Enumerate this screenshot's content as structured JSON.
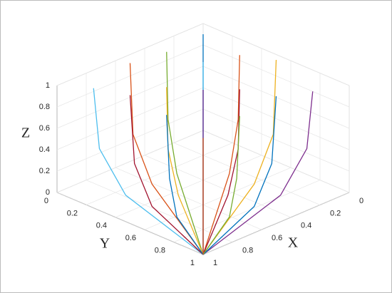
{
  "chart_data": {
    "type": "line3d",
    "x_label": "X",
    "y_label": "Y",
    "z_label": "Z",
    "xlim": [
      0,
      1
    ],
    "ylim": [
      0,
      1
    ],
    "zlim": [
      0,
      1
    ],
    "xticks": [
      0,
      0.2,
      0.4,
      0.6,
      0.8,
      1
    ],
    "yticks": [
      0,
      0.2,
      0.4,
      0.6,
      0.8,
      1
    ],
    "zticks": [
      0,
      0.2,
      0.4,
      0.6,
      0.8,
      1
    ],
    "grid": true,
    "series": [
      {
        "color": "#0072BD",
        "x": [
          0,
          0.05,
          0.3,
          1
        ],
        "y": [
          0,
          0.05,
          0.3,
          1
        ],
        "z": [
          0.9,
          0.3,
          0.05,
          0
        ]
      },
      {
        "color": "#D95319",
        "x": [
          0,
          0.05,
          0.3,
          1
        ],
        "y": [
          0.25,
          0.29,
          0.48,
          1
        ],
        "z": [
          0.85,
          0.3,
          0.05,
          0
        ]
      },
      {
        "color": "#EDB120",
        "x": [
          0,
          0.05,
          0.3,
          1
        ],
        "y": [
          0.5,
          0.53,
          0.65,
          1
        ],
        "z": [
          0.95,
          0.3,
          0.05,
          0
        ]
      },
      {
        "color": "#7E2F8E",
        "x": [
          0,
          0.05,
          0.3,
          1
        ],
        "y": [
          0.75,
          0.76,
          0.83,
          1
        ],
        "z": [
          0.8,
          0.3,
          0.05,
          0
        ]
      },
      {
        "color": "#77AC30",
        "x": [
          0.25,
          0.29,
          0.48,
          1
        ],
        "y": [
          0,
          0.05,
          0.3,
          1
        ],
        "z": [
          0.88,
          0.3,
          0.05,
          0
        ]
      },
      {
        "color": "#4DBEEE",
        "x": [
          0.25,
          0.29,
          0.48,
          1
        ],
        "y": [
          0.25,
          0.29,
          0.48,
          1
        ],
        "z": [
          0.93,
          0.3,
          0.05,
          0
        ]
      },
      {
        "color": "#A2142F",
        "x": [
          0.25,
          0.29,
          0.48,
          1
        ],
        "y": [
          0.5,
          0.53,
          0.65,
          1
        ],
        "z": [
          0.82,
          0.3,
          0.05,
          0
        ]
      },
      {
        "color": "#0072BD",
        "x": [
          0.25,
          0.29,
          0.48,
          1
        ],
        "y": [
          0.75,
          0.76,
          0.83,
          1
        ],
        "z": [
          0.9,
          0.3,
          0.05,
          0
        ]
      },
      {
        "color": "#D95319",
        "x": [
          0.5,
          0.53,
          0.65,
          1
        ],
        "y": [
          0,
          0.05,
          0.3,
          1
        ],
        "z": [
          0.92,
          0.3,
          0.05,
          0
        ]
      },
      {
        "color": "#EDB120",
        "x": [
          0.5,
          0.53,
          0.65,
          1
        ],
        "y": [
          0.25,
          0.29,
          0.48,
          1
        ],
        "z": [
          0.84,
          0.3,
          0.05,
          0
        ]
      },
      {
        "color": "#7E2F8E",
        "x": [
          0.5,
          0.53,
          0.65,
          1
        ],
        "y": [
          0.5,
          0.53,
          0.65,
          1
        ],
        "z": [
          0.96,
          0.3,
          0.05,
          0
        ]
      },
      {
        "color": "#77AC30",
        "x": [
          0.5,
          0.53,
          0.65,
          1
        ],
        "y": [
          0.75,
          0.76,
          0.83,
          1
        ],
        "z": [
          0.86,
          0.3,
          0.05,
          0
        ]
      },
      {
        "color": "#4DBEEE",
        "x": [
          0.75,
          0.76,
          0.83,
          1
        ],
        "y": [
          0,
          0.05,
          0.3,
          1
        ],
        "z": [
          0.83,
          0.3,
          0.05,
          0
        ]
      },
      {
        "color": "#A2142F",
        "x": [
          0.75,
          0.76,
          0.83,
          1
        ],
        "y": [
          0.25,
          0.29,
          0.48,
          1
        ],
        "z": [
          0.91,
          0.3,
          0.05,
          0
        ]
      },
      {
        "color": "#0072BD",
        "x": [
          0.75,
          0.76,
          0.83,
          1
        ],
        "y": [
          0.5,
          0.53,
          0.65,
          1
        ],
        "z": [
          0.87,
          0.3,
          0.05,
          0
        ]
      },
      {
        "color": "#D95319",
        "x": [
          0.75,
          0.76,
          0.83,
          1
        ],
        "y": [
          0.75,
          0.76,
          0.83,
          1
        ],
        "z": [
          0.8,
          0.3,
          0.05,
          0
        ]
      }
    ]
  }
}
